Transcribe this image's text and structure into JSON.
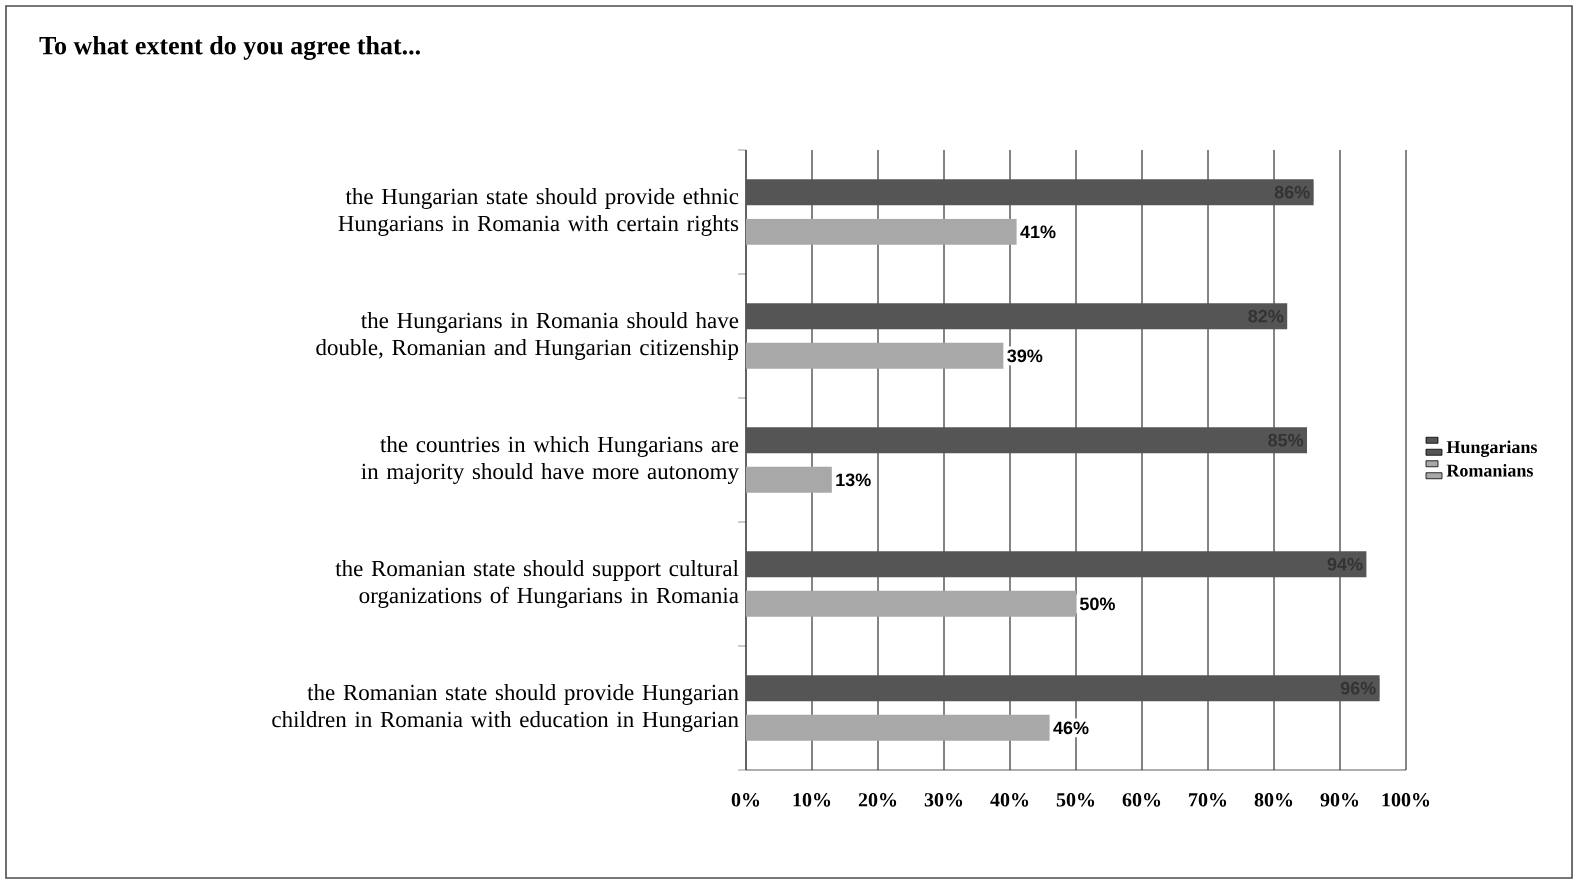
{
  "chart_data": {
    "type": "bar",
    "orientation": "horizontal",
    "title": "To what extent do you agree that...",
    "categories": [
      "the Hungarian state should provide ethnic Hungarians in Romania with certain rights",
      "the Hungarians in Romania should have double, Romanian and Hungarian citizenship",
      "the countries in which Hungarians are in majority should have more autonomy",
      "the Romanian state should support cultural organizations of Hungarians in Romania",
      "the Romanian state should provide Hungarian children in Romania with education in Hungarian"
    ],
    "series": [
      {
        "name": "Hungarians",
        "color": "#555555",
        "values": [
          86,
          82,
          85,
          94,
          96
        ],
        "value_labels": [
          "86%",
          "82%",
          "85%",
          "94%",
          "96%"
        ]
      },
      {
        "name": "Romanians",
        "color": "#a8a8a8",
        "values": [
          41,
          39,
          13,
          50,
          46
        ],
        "value_labels": [
          "41%",
          "39%",
          "13%",
          "50%",
          "46%"
        ]
      }
    ],
    "xlim": [
      0,
      100
    ],
    "xticks": [
      {
        "value": 0,
        "label": "0%"
      },
      {
        "value": 10,
        "label": "10%"
      },
      {
        "value": 20,
        "label": "20%"
      },
      {
        "value": 30,
        "label": "30%"
      },
      {
        "value": 40,
        "label": "40%"
      },
      {
        "value": 50,
        "label": "50%"
      },
      {
        "value": 60,
        "label": "60%"
      },
      {
        "value": 70,
        "label": "70%"
      },
      {
        "value": 80,
        "label": "80%"
      },
      {
        "value": 90,
        "label": "90%"
      },
      {
        "value": 100,
        "label": "100%"
      }
    ],
    "grid": "x",
    "legend": "right"
  }
}
